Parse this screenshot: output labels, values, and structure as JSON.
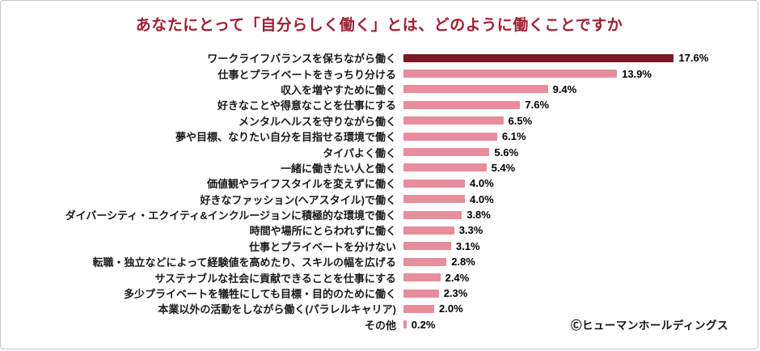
{
  "chart_data": {
    "type": "bar",
    "orientation": "horizontal",
    "title": "あなたにとって「自分らしく働く」とは、どのように働くことですか",
    "categories": [
      "ワークライフバランスを保ちながら働く",
      "仕事とプライベートをきっちり分ける",
      "収入を増やすために働く",
      "好きなことや得意なことを仕事にする",
      "メンタルヘルスを守りながら働く",
      "夢や目標、なりたい自分を目指せる環境で働く",
      "タイパよく働く",
      "一緒に働きたい人と働く",
      "価値観やライフスタイルを変えずに働く",
      "好きなファッション(ヘアスタイル)で働く",
      "ダイバーシティ・エクイティ&インクルージョンに積極的な環境で働く",
      "時間や場所にとらわれずに働く",
      "仕事とプライベートを分けない",
      "転職・独立などによって経験値を高めたり、スキルの幅を広げる",
      "サステナブルな社会に貢献できることを仕事にする",
      "多少プライベートを犠牲にしても目標・目的のために働く",
      "本業以外の活動をしながら働く(パラレルキャリア)",
      "その他"
    ],
    "values": [
      17.6,
      13.9,
      9.4,
      7.6,
      6.5,
      6.1,
      5.6,
      5.4,
      4.0,
      4.0,
      3.8,
      3.3,
      3.1,
      2.8,
      2.4,
      2.3,
      2.0,
      0.2
    ],
    "value_suffix": "%",
    "xlim": [
      0,
      18
    ],
    "grid": false,
    "legend": "none",
    "colors": {
      "title": "#A01E32",
      "highlight_bar": "#7C1823",
      "bar": "#E78D9C"
    }
  },
  "footer": {
    "credit": "Ⓒヒューマンホールディングス"
  }
}
